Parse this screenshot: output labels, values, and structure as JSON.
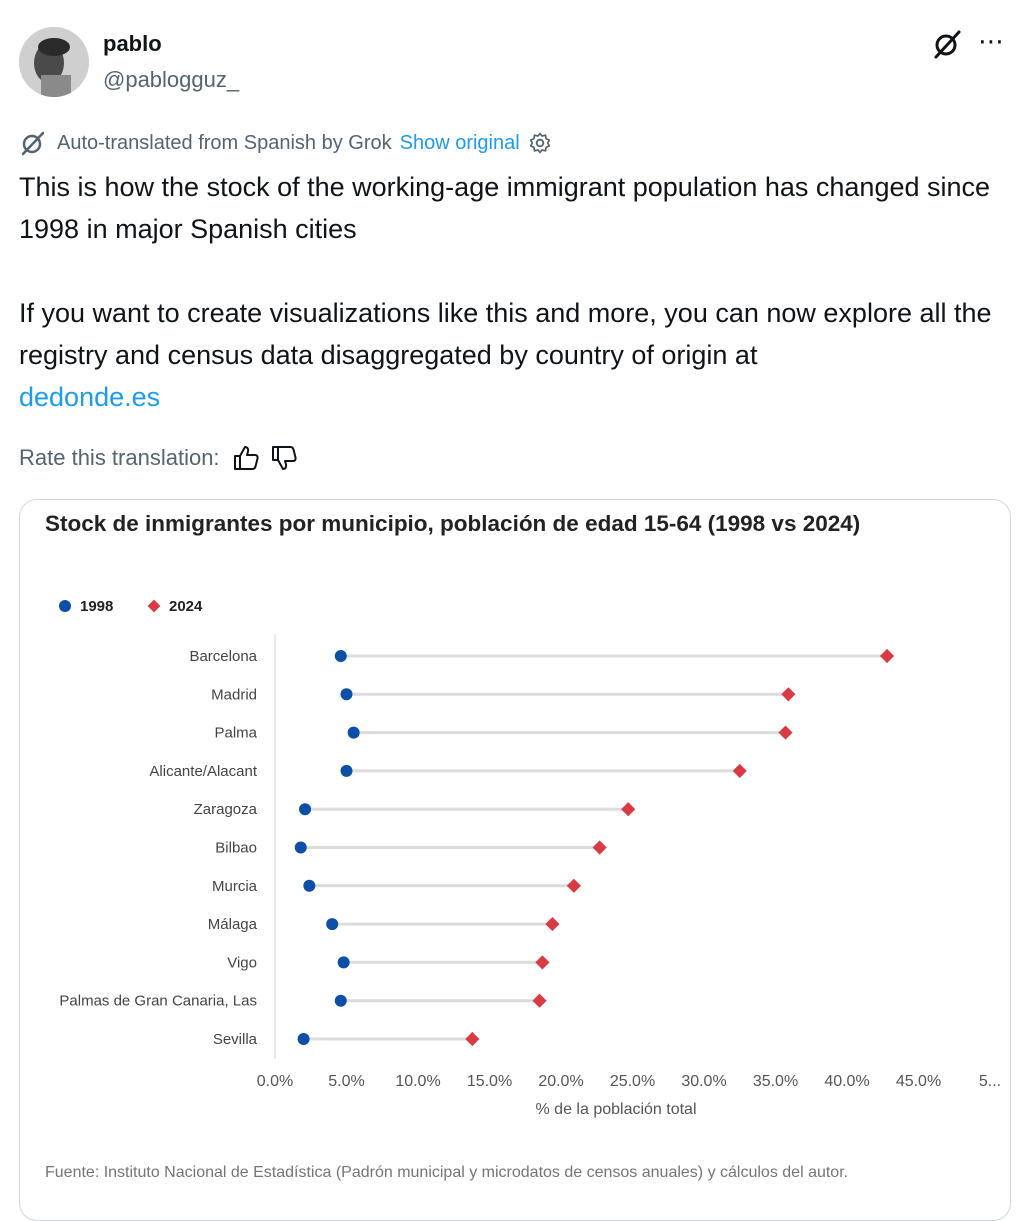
{
  "user": {
    "name": "pablo",
    "handle": "@pablogguz_",
    "avatar_icon": "profile-photo"
  },
  "header": {
    "grok_icon": "grok-icon",
    "more_icon": "more-dots-icon",
    "more_label": "⋯"
  },
  "translation": {
    "notice": "Auto-translated from Spanish by Grok",
    "show_original": "Show original",
    "settings_icon": "gear-icon",
    "rate_label": "Rate this translation:",
    "thumbs_up_icon": "thumbs-up-icon",
    "thumbs_down_icon": "thumbs-down-icon"
  },
  "tweet": {
    "paragraph1": "This is how the stock of the working-age immigrant population has changed since 1998 in major Spanish cities",
    "paragraph2": "If you want to create visualizations like this and more, you can now explore all the registry and census data disaggregated by country of origin at",
    "link": "dedonde.es"
  },
  "chart_data": {
    "type": "scatter",
    "title": "Stock de inmigrantes por municipio, población de edad 15-64 (1998 vs 2024)",
    "xlabel": "% de la población total",
    "ylabel": "",
    "xlim": [
      0,
      50
    ],
    "x_ticks": [
      "0.0%",
      "5.0%",
      "10.0%",
      "15.0%",
      "20.0%",
      "25.0%",
      "30.0%",
      "35.0%",
      "40.0%",
      "45.0%",
      "5..."
    ],
    "categories": [
      "Barcelona",
      "Madrid",
      "Palma",
      "Alicante/Alacant",
      "Zaragoza",
      "Bilbao",
      "Murcia",
      "Málaga",
      "Vigo",
      "Palmas de Gran Canaria, Las",
      "Sevilla"
    ],
    "series": [
      {
        "name": "1998",
        "marker": "circle",
        "color": "#0d4ea6",
        "values": [
          4.6,
          5.0,
          5.5,
          5.0,
          2.1,
          1.8,
          2.4,
          4.0,
          4.8,
          4.6,
          2.0
        ]
      },
      {
        "name": "2024",
        "marker": "diamond",
        "color": "#d93a44",
        "values": [
          42.8,
          35.9,
          35.7,
          32.5,
          24.7,
          22.7,
          20.9,
          19.4,
          18.7,
          18.5,
          13.8
        ]
      }
    ],
    "legend_position": "top-left",
    "grid": false,
    "source": "Fuente: Instituto Nacional de Estadística (Padrón municipal y microdatos de censos anuales) y cálculos del autor."
  }
}
